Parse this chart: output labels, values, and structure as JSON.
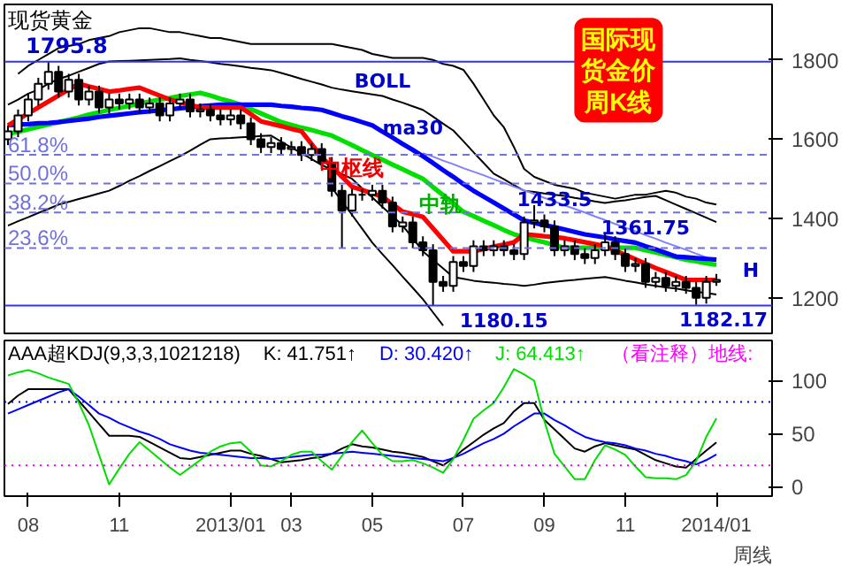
{
  "chart_data": [
    {
      "type": "candlestick",
      "title": "国际现货金价周K线",
      "subtitle": "现货黄金",
      "ylim": [
        1110,
        1940
      ],
      "yticks": [
        1200,
        1400,
        1600,
        1800
      ],
      "tick_labels": "y",
      "categories": [
        null,
        null,
        "08",
        null,
        null,
        null,
        null,
        null,
        null,
        null,
        null,
        "11",
        null,
        null,
        null,
        null,
        null,
        null,
        null,
        null,
        null,
        null,
        "2013/01",
        null,
        null,
        null,
        null,
        null,
        "03",
        null,
        null,
        null,
        null,
        null,
        null,
        null,
        "05",
        null,
        null,
        null,
        null,
        null,
        null,
        null,
        null,
        "07",
        null,
        null,
        null,
        null,
        null,
        null,
        null,
        "09",
        null,
        null,
        null,
        null,
        null,
        null,
        null,
        "11",
        null,
        null,
        null,
        null,
        null,
        null,
        null,
        null,
        "2014/01"
      ],
      "ohlc": [
        [
          1600,
          1635,
          1585,
          1620
        ],
        [
          1620,
          1675,
          1605,
          1660
        ],
        [
          1660,
          1715,
          1645,
          1700
        ],
        [
          1700,
          1755,
          1685,
          1740
        ],
        [
          1740,
          1795.8,
          1725,
          1770
        ],
        [
          1770,
          1785,
          1705,
          1720
        ],
        [
          1720,
          1765,
          1705,
          1750
        ],
        [
          1750,
          1765,
          1685,
          1700
        ],
        [
          1700,
          1735,
          1685,
          1720
        ],
        [
          1720,
          1735,
          1665,
          1680
        ],
        [
          1680,
          1715,
          1665,
          1700
        ],
        [
          1700,
          1715,
          1675,
          1690
        ],
        [
          1690,
          1715,
          1675,
          1700
        ],
        [
          1700,
          1715,
          1665,
          1680
        ],
        [
          1680,
          1705,
          1665,
          1690
        ],
        [
          1690,
          1705,
          1645,
          1660
        ],
        [
          1660,
          1705,
          1645,
          1690
        ],
        [
          1690,
          1715,
          1675,
          1700
        ],
        [
          1700,
          1715,
          1655,
          1670
        ],
        [
          1670,
          1690,
          1655,
          1675
        ],
        [
          1675,
          1690,
          1645,
          1660
        ],
        [
          1660,
          1675,
          1635,
          1650
        ],
        [
          1650,
          1675,
          1635,
          1660
        ],
        [
          1660,
          1675,
          1625,
          1640
        ],
        [
          1640,
          1655,
          1585,
          1600
        ],
        [
          1600,
          1615,
          1565,
          1580
        ],
        [
          1580,
          1605,
          1565,
          1590
        ],
        [
          1590,
          1605,
          1560,
          1575
        ],
        [
          1575,
          1595,
          1560,
          1580
        ],
        [
          1580,
          1595,
          1545,
          1560
        ],
        [
          1560,
          1590,
          1545,
          1575
        ],
        [
          1575,
          1590,
          1525,
          1540
        ],
        [
          1540,
          1555,
          1455,
          1470
        ],
        [
          1470,
          1485,
          1326,
          1420
        ],
        [
          1420,
          1475,
          1405,
          1460
        ],
        [
          1460,
          1475,
          1445,
          1460
        ],
        [
          1460,
          1485,
          1445,
          1470
        ],
        [
          1470,
          1485,
          1425,
          1440
        ],
        [
          1440,
          1455,
          1365,
          1380
        ],
        [
          1380,
          1405,
          1365,
          1390
        ],
        [
          1390,
          1405,
          1325,
          1340
        ],
        [
          1340,
          1355,
          1305,
          1320
        ],
        [
          1320,
          1335,
          1180.15,
          1240
        ],
        [
          1240,
          1255,
          1215,
          1230
        ],
        [
          1230,
          1305,
          1215,
          1290
        ],
        [
          1290,
          1305,
          1265,
          1280
        ],
        [
          1280,
          1345,
          1265,
          1330
        ],
        [
          1330,
          1345,
          1305,
          1320
        ],
        [
          1320,
          1345,
          1305,
          1330
        ],
        [
          1330,
          1345,
          1305,
          1320
        ],
        [
          1320,
          1335,
          1295,
          1310
        ],
        [
          1310,
          1405,
          1295,
          1390
        ],
        [
          1390,
          1433.5,
          1375,
          1395
        ],
        [
          1395,
          1410,
          1365,
          1380
        ],
        [
          1380,
          1395,
          1305,
          1320
        ],
        [
          1320,
          1345,
          1305,
          1330
        ],
        [
          1330,
          1345,
          1295,
          1310
        ],
        [
          1310,
          1325,
          1285,
          1300
        ],
        [
          1300,
          1335,
          1285,
          1320
        ],
        [
          1320,
          1361.75,
          1305,
          1340
        ],
        [
          1340,
          1355,
          1295,
          1310
        ],
        [
          1310,
          1325,
          1265,
          1280
        ],
        [
          1280,
          1300,
          1265,
          1285
        ],
        [
          1285,
          1300,
          1225,
          1240
        ],
        [
          1240,
          1265,
          1225,
          1250
        ],
        [
          1250,
          1265,
          1215,
          1230
        ],
        [
          1230,
          1255,
          1215,
          1240
        ],
        [
          1240,
          1255,
          1210,
          1225
        ],
        [
          1225,
          1240,
          1182.17,
          1200
        ],
        [
          1200,
          1255,
          1185,
          1240
        ],
        [
          1240,
          1260,
          1230,
          1245
        ]
      ],
      "series": [
        {
          "type": "line",
          "color": "#000000",
          "values": [
            null,
            1765,
            1785,
            1800,
            1815,
            1830,
            1835,
            1840,
            1850,
            1855,
            1860,
            1870,
            1875,
            1880,
            1880,
            1875,
            1870,
            1870,
            1865,
            1860,
            1855,
            1855,
            1850,
            1845,
            1840,
            1840,
            1840,
            1840,
            1840,
            1840,
            1840,
            1840,
            1840,
            1835,
            1830,
            1825,
            1815,
            1810,
            1805,
            1805,
            1805,
            1805,
            1800,
            1790,
            1785,
            1775,
            1740,
            1700,
            1660,
            1630,
            1580,
            1525,
            1505,
            1495,
            1485,
            1480,
            1475,
            1465,
            1460,
            1455,
            1450,
            1455,
            1460,
            1460,
            1465,
            1470,
            1465,
            1455,
            1450,
            1440,
            1435
          ]
        },
        {
          "type": "line",
          "color": "#000000",
          "values": [
            1687,
            1700,
            1715,
            1725,
            1740,
            1752,
            1760,
            1770,
            1780,
            1790,
            1796,
            1797,
            1798,
            1799,
            1800,
            1801,
            1802,
            1804,
            1800,
            1797,
            1794,
            1790,
            1787,
            1784,
            1780,
            1777,
            1774,
            1767,
            1760,
            1752,
            1745,
            1738,
            1730,
            1725,
            1721,
            1717,
            1713,
            1709,
            1700,
            1692,
            1683,
            1674,
            1657,
            1639,
            1622,
            1595,
            1567,
            1540,
            1513,
            1499,
            1484,
            1470,
            1467,
            1463,
            1460,
            1457,
            1452,
            1448,
            1443,
            1439,
            1443,
            1446,
            1450,
            1454,
            1457,
            1446,
            1435,
            1424,
            1413,
            1402,
            1391
          ]
        },
        {
          "type": "line",
          "color": "#000000",
          "values": [
            1382,
            1393,
            1403,
            1414,
            1424,
            1435,
            1442,
            1449,
            1456,
            1463,
            1470,
            1482,
            1495,
            1507,
            1520,
            1532,
            1545,
            1557,
            1571,
            1586,
            1600,
            1602,
            1603,
            1605,
            1606,
            1608,
            1609,
            1594,
            1579,
            1565,
            1550,
            1535,
            1523,
            1512,
            1500,
            1476,
            1453,
            1429,
            1406,
            1382,
            1350,
            1317,
            1295,
            1274,
            1252,
            1248,
            1243,
            1240,
            1238,
            1235,
            1233,
            1230,
            1233,
            1237,
            1240,
            1243,
            1245,
            1248,
            1250,
            1252,
            1248,
            1243,
            1239,
            1234,
            1230,
            1226,
            1223,
            1219,
            1215,
            1212,
            1208
          ]
        },
        {
          "type": "line",
          "color": "#000000",
          "values": [
            null,
            null,
            null,
            null,
            null,
            null,
            null,
            null,
            null,
            null,
            null,
            null,
            null,
            null,
            null,
            null,
            null,
            null,
            null,
            null,
            null,
            null,
            null,
            null,
            null,
            null,
            null,
            null,
            null,
            null,
            null,
            null,
            1478,
            1443,
            1409,
            1374,
            1339,
            1310,
            1282,
            1253,
            1225,
            1196,
            1163,
            1130,
            null,
            null,
            null,
            null,
            null,
            null,
            null,
            null,
            null,
            null,
            null,
            null,
            null,
            null,
            null,
            null,
            null,
            null,
            null,
            null,
            null,
            null,
            null,
            null,
            null,
            null,
            null
          ]
        },
        {
          "type": "line",
          "color": "#8080ff",
          "values": [
            null,
            null,
            null,
            null,
            null,
            null,
            null,
            null,
            null,
            null,
            null,
            null,
            null,
            null,
            null,
            null,
            null,
            null,
            null,
            null,
            null,
            null,
            null,
            null,
            null,
            null,
            null,
            null,
            null,
            null,
            null,
            null,
            null,
            null,
            null,
            null,
            null,
            null,
            null,
            null,
            null,
            1565,
            1556,
            1546,
            1537,
            1527,
            1518,
            1509,
            1499,
            1490,
            1480,
            1471,
            1462,
            1452,
            1443,
            1433,
            1424,
            1415,
            1405,
            1396,
            1386,
            1377,
            1368,
            1358,
            1349,
            1339,
            1330,
            1321,
            1311,
            1302,
            1292
          ]
        },
        {
          "type": "line",
          "color": "#00e000",
          "values": [
            1613,
            1619,
            1625,
            1631,
            1637,
            1643,
            1649,
            1655,
            1662,
            1668,
            1674,
            1679,
            1684,
            1690,
            1695,
            1700,
            1704,
            1709,
            1713,
            1717,
            1710,
            1702,
            1695,
            1687,
            1676,
            1665,
            1654,
            1643,
            1636,
            1629,
            1623,
            1616,
            1609,
            1597,
            1585,
            1572,
            1560,
            1548,
            1536,
            1524,
            1512,
            1500,
            1479,
            1459,
            1438,
            1417,
            1406,
            1394,
            1383,
            1371,
            1360,
            1353,
            1346,
            1340,
            1333,
            1326,
            1326,
            1326,
            1326,
            1326,
            1326,
            1326,
            1326,
            1320,
            1314,
            1308,
            1302,
            1296,
            1292,
            1287,
            1283
          ]
        },
        {
          "type": "line",
          "color": "#0000ff",
          "values": [
            1635,
            1637,
            1638,
            1640,
            1641,
            1643,
            1646,
            1649,
            1652,
            1656,
            1659,
            1662,
            1665,
            1668,
            1670,
            1673,
            1675,
            1678,
            1680,
            1683,
            1685,
            1687,
            1687,
            1687,
            1687,
            1687,
            1687,
            1684,
            1682,
            1679,
            1677,
            1674,
            1666,
            1658,
            1651,
            1643,
            1635,
            1619,
            1604,
            1588,
            1573,
            1557,
            1540,
            1522,
            1505,
            1487,
            1470,
            1455,
            1440,
            1425,
            1410,
            1395,
            1389,
            1383,
            1378,
            1372,
            1366,
            1360,
            1356,
            1352,
            1347,
            1343,
            1339,
            1330,
            1322,
            1313,
            1304,
            1302,
            1300,
            1298,
            1296
          ]
        },
        {
          "type": "line",
          "color": "#ff0000",
          "values": [
            1635,
            1650,
            1665,
            1680,
            1695,
            1710,
            1725,
            1740,
            1733,
            1727,
            1720,
            1723,
            1727,
            1730,
            1720,
            1710,
            1700,
            1693,
            1687,
            1680,
            1680,
            1680,
            1680,
            1680,
            1663,
            1645,
            1639,
            1633,
            1626,
            1620,
            1588,
            1555,
            1530,
            1505,
            1480,
            1472,
            1463,
            1455,
            1436,
            1417,
            1411,
            1404,
            1375,
            1346,
            1317,
            1317,
            1317,
            1323,
            1329,
            1334,
            1340,
            1360,
            1358,
            1355,
            1353,
            1350,
            1345,
            1340,
            1335,
            1330,
            1319,
            1308,
            1297,
            1286,
            1275,
            1265,
            1255,
            1245,
            1245,
            1245,
            1245
          ]
        }
      ],
      "ref_lines": [
        {
          "axis": "y",
          "value": 1795.8,
          "label": "1795.8",
          "color": "#3030ff",
          "line_style": "solid"
        },
        {
          "axis": "y",
          "value": 1560.6,
          "color": "#7070e0",
          "line_style": "dashed"
        },
        {
          "axis": "y",
          "value": 1488,
          "color": "#7070e0",
          "line_style": "dashed"
        },
        {
          "axis": "y",
          "value": 1415.3,
          "color": "#7070e0",
          "line_style": "dashed"
        },
        {
          "axis": "y",
          "value": 1325.4,
          "color": "#7070e0",
          "line_style": "dashed"
        },
        {
          "axis": "y",
          "value": 1180.15,
          "label": "1180.15",
          "color": "#3030ff",
          "line_style": "solid"
        }
      ],
      "annotations": [
        "61.8%",
        "50.0%",
        "38.2%",
        "23.6%",
        "BOLL",
        "ma30",
        "中枢线",
        "中轨",
        "1433.5",
        "1361.75",
        "1182.17",
        "H"
      ]
    },
    {
      "type": "line",
      "title": "AAA超KDJ(9,3,3,1021218)",
      "xlabel": "周线",
      "ylim": [
        -9,
        138
      ],
      "yticks": [
        0,
        50,
        100
      ],
      "legend": "top",
      "categories": [
        null,
        null,
        "08",
        null,
        null,
        null,
        null,
        null,
        null,
        null,
        null,
        "11",
        null,
        null,
        null,
        null,
        null,
        null,
        null,
        null,
        null,
        null,
        "2013/01",
        null,
        null,
        null,
        null,
        null,
        "03",
        null,
        null,
        null,
        null,
        null,
        null,
        null,
        "05",
        null,
        null,
        null,
        null,
        null,
        null,
        null,
        null,
        "07",
        null,
        null,
        null,
        null,
        null,
        null,
        null,
        "09",
        null,
        null,
        null,
        null,
        null,
        null,
        null,
        "11",
        null,
        null,
        null,
        null,
        null,
        null,
        null,
        null,
        "2014/01"
      ],
      "series": [
        {
          "name": "K: 41.751↑",
          "color": "#000000",
          "values": [
            78,
            86,
            92,
            92,
            92,
            92,
            92,
            81,
            70,
            59,
            48,
            48,
            48,
            47,
            42,
            37,
            32,
            27,
            26,
            28,
            30,
            32,
            34,
            34,
            31,
            29,
            26,
            23,
            24,
            25,
            27,
            28,
            31,
            36,
            40,
            38,
            37,
            35,
            33,
            32,
            30,
            28,
            24,
            20,
            27,
            35,
            42,
            49,
            55,
            60,
            71,
            79,
            79,
            63,
            54,
            45,
            36,
            33,
            38,
            41,
            39,
            37,
            35,
            30,
            25,
            22,
            19,
            18,
            26,
            34,
            41.751
          ]
        },
        {
          "name": "D: 30.420↑",
          "color": "#0000ff",
          "values": [
            69,
            73,
            77,
            81,
            85,
            89,
            92,
            85,
            77,
            69,
            65,
            60,
            56,
            52,
            49,
            45,
            40,
            37,
            34,
            32,
            31,
            30,
            29,
            28,
            27,
            27,
            26,
            27,
            28,
            29,
            30,
            30,
            31,
            32,
            33,
            32,
            31,
            30,
            29,
            28,
            27,
            26,
            25,
            24,
            27,
            31,
            36,
            41,
            45,
            50,
            57,
            63,
            69,
            69,
            63,
            58,
            52,
            47,
            44,
            42,
            41,
            39,
            36,
            34,
            31,
            29,
            26,
            24,
            21,
            25,
            30.42
          ]
        },
        {
          "name": "J: 64.413↑",
          "color": "#00dd00",
          "values": [
            105,
            108,
            110,
            107,
            103,
            100,
            97,
            79,
            58,
            30,
            2,
            17,
            31,
            42,
            34,
            26,
            18,
            11,
            18,
            25,
            33,
            38,
            41,
            42,
            33,
            20,
            19,
            24,
            30,
            33,
            33,
            24,
            16,
            29,
            42,
            53,
            41,
            30,
            24,
            24,
            25,
            22,
            18,
            13,
            26,
            44,
            64,
            72,
            79,
            94,
            111,
            106,
            100,
            62,
            31,
            19,
            7,
            7,
            25,
            39,
            35,
            30,
            19,
            9,
            8,
            8,
            7,
            11,
            24,
            47,
            64.413
          ]
        }
      ],
      "ref_lines": [
        {
          "axis": "y",
          "value": 80,
          "color": "#0000ff",
          "line_style": "dotted"
        },
        {
          "axis": "y",
          "value": 20,
          "color": "#ff00ff",
          "line_style": "dotted"
        }
      ],
      "annotations": [
        "（看注释）地线:"
      ]
    }
  ]
}
